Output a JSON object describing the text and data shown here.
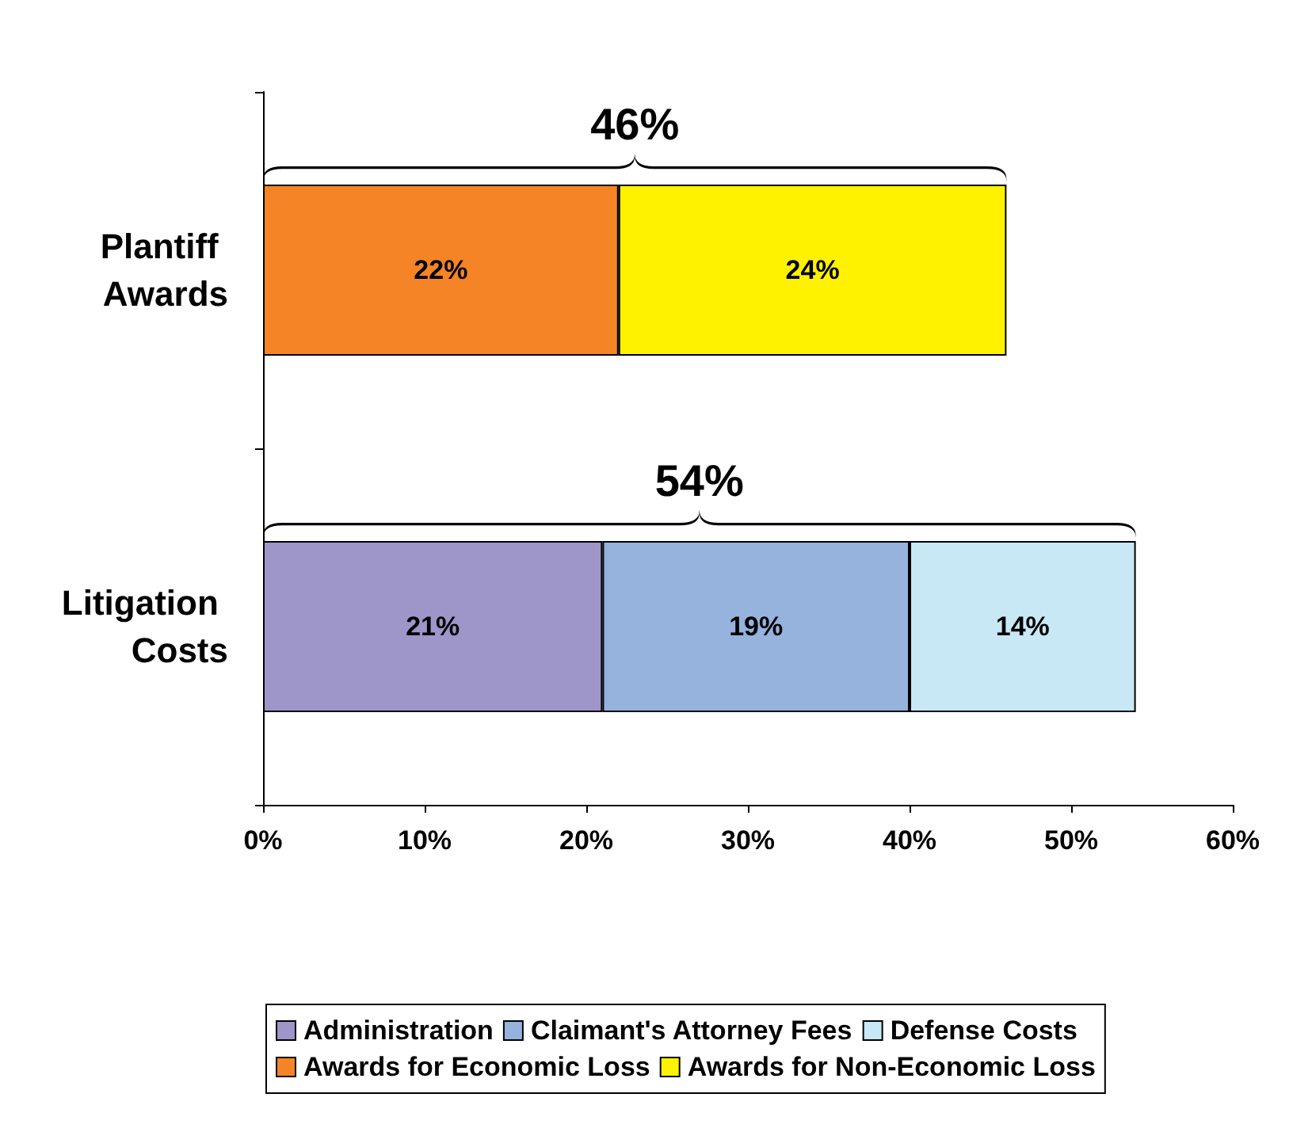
{
  "chart_data": {
    "type": "bar",
    "orientation": "horizontal",
    "stacked": true,
    "categories": [
      "Plantiff Awards",
      "Litigation Costs"
    ],
    "series": [
      {
        "name": "Administration",
        "color": "#9e96c8",
        "values": [
          null,
          21
        ],
        "value_labels": [
          null,
          "21%"
        ]
      },
      {
        "name": "Claimant's Attorney Fees",
        "color": "#95b3dc",
        "values": [
          null,
          19
        ],
        "value_labels": [
          null,
          "19%"
        ]
      },
      {
        "name": "Defense Costs",
        "color": "#c8e8f5",
        "values": [
          null,
          14
        ],
        "value_labels": [
          null,
          "14%"
        ]
      },
      {
        "name": "Awards for Economic Loss",
        "color": "#f58426",
        "values": [
          22,
          null
        ],
        "value_labels": [
          "22%",
          null
        ]
      },
      {
        "name": "Awards for Non-Economic Loss",
        "color": "#fff200",
        "values": [
          24,
          null
        ],
        "value_labels": [
          "24%",
          null
        ]
      }
    ],
    "totals": [
      "46%",
      "54%"
    ],
    "xlim": [
      0,
      60
    ],
    "xticks": [
      {
        "value": 0,
        "label": "0%"
      },
      {
        "value": 10,
        "label": "10%"
      },
      {
        "value": 20,
        "label": "20%"
      },
      {
        "value": 30,
        "label": "30%"
      },
      {
        "value": 40,
        "label": "40%"
      },
      {
        "value": 50,
        "label": "50%"
      },
      {
        "value": 60,
        "label": "60%"
      }
    ],
    "grid": false,
    "legend": "bottom"
  }
}
